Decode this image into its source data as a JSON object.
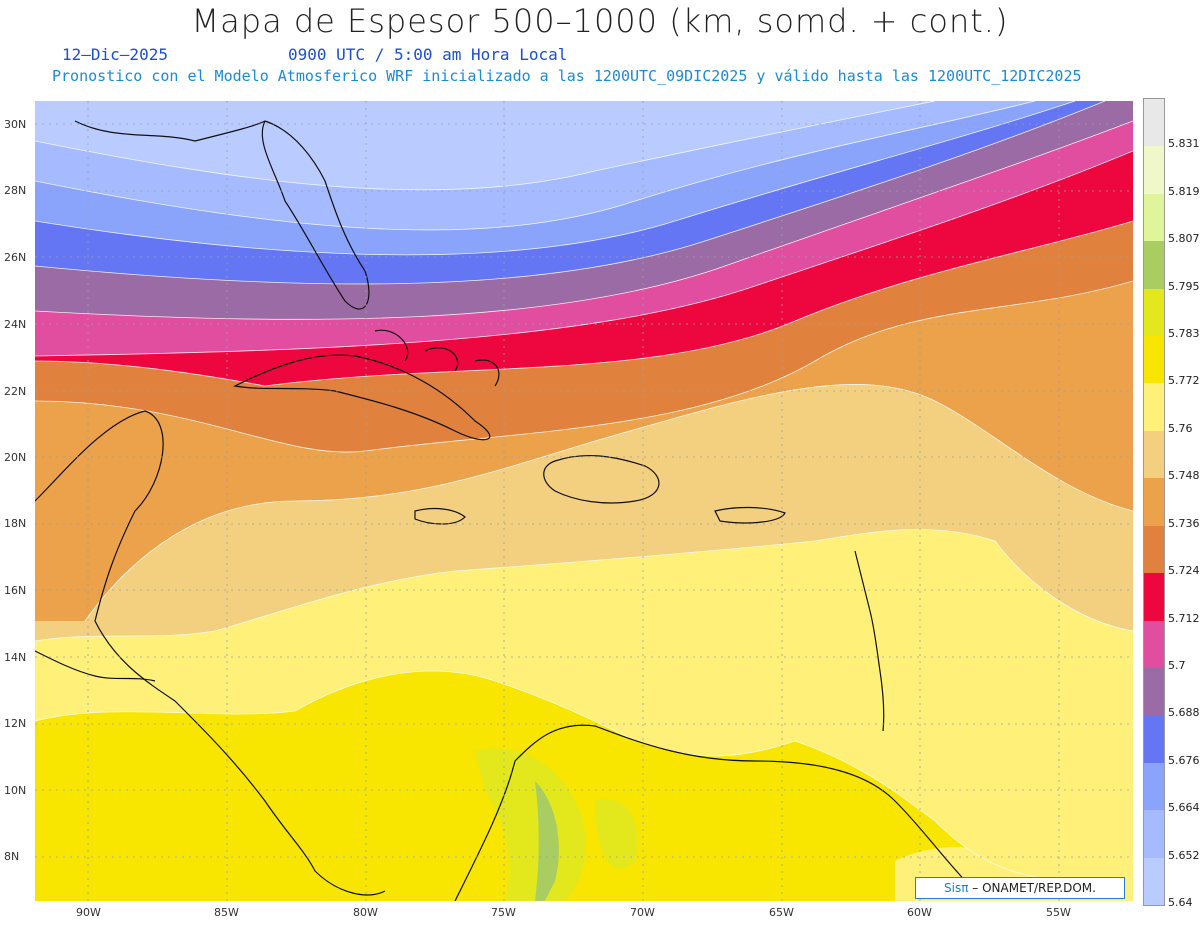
{
  "header": {
    "title": "Mapa de Espesor 500–1000 (km, somd. + cont.)",
    "date": "12–Dic–2025",
    "time": "0900 UTC / 5:00 am Hora Local",
    "forecast_line": "Pronostico con el Modelo Atmosferico WRF inicializado a las 1200UTC_09DIC2025 y válido hasta las  1200UTC_12DIC2025"
  },
  "map": {
    "lat_labels": [
      "30N",
      "28N",
      "26N",
      "24N",
      "22N",
      "20N",
      "18N",
      "16N",
      "14N",
      "12N",
      "10N",
      "8N"
    ],
    "lon_labels": [
      "90W",
      "85W",
      "80W",
      "75W",
      "70W",
      "65W",
      "60W",
      "55W"
    ],
    "credit_sis": "Sisπ",
    "credit_org": " – ONAMET/REP.DOM."
  },
  "colorbar": {
    "labels": [
      "5.831",
      "5.819",
      "5.807",
      "5.795",
      "5.783",
      "5.772",
      "5.76",
      "5.748",
      "5.736",
      "5.724",
      "5.712",
      "5.7",
      "5.688",
      "5.676",
      "5.664",
      "5.652",
      "5.64"
    ],
    "colors": [
      "#e8e8e8",
      "#f0f7c8",
      "#e0f59a",
      "#aacd62",
      "#e2e81c",
      "#f8e600",
      "#fff07a",
      "#f3cf80",
      "#eba24a",
      "#e0813d",
      "#ee063f",
      "#e24e9f",
      "#9b6ba5",
      "#6476f4",
      "#8aa4fb",
      "#a6bbff",
      "#bacbff"
    ]
  }
}
